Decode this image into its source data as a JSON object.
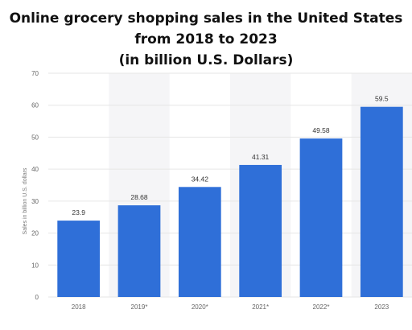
{
  "title_lines": [
    "Online grocery shopping sales in the United States",
    "from 2018 to 2023",
    "(in billion U.S. Dollars)"
  ],
  "chart_data": {
    "type": "bar",
    "title": "Online grocery shopping sales in the United States from 2018 to 2023 (in billion U.S. Dollars)",
    "categories": [
      "2018",
      "2019*",
      "2020*",
      "2021*",
      "2022*",
      "2023"
    ],
    "values": [
      23.9,
      28.68,
      34.42,
      41.31,
      49.58,
      59.5
    ],
    "value_labels": [
      "23.9",
      "28.68",
      "34.42",
      "41.31",
      "49.58",
      "59.5"
    ],
    "xlabel": "",
    "ylabel": "Sales in billion U.S. dollars",
    "ylim": [
      0,
      70
    ],
    "yticks": [
      0,
      10,
      20,
      30,
      40,
      50,
      60,
      70
    ],
    "grid": true,
    "bar_color": "#2f6fd8",
    "alt_band_color": "#f5f5f7",
    "grid_color": "#e6e6e6"
  }
}
